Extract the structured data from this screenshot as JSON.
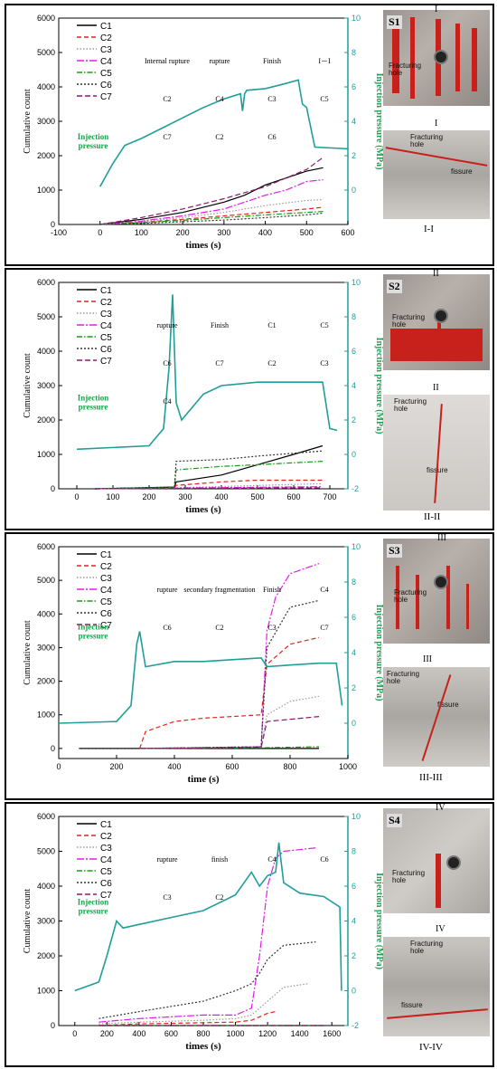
{
  "colors": {
    "C1": "#000000",
    "C2": "#e8221b",
    "C3": "#9a9a9a",
    "C4": "#e61ae6",
    "C5": "#12a012",
    "C6": "#333333",
    "C7": "#8b1a6b",
    "injection": "#1f9e9a",
    "injection_label": "#17a34a",
    "crack": "#c8201a"
  },
  "legend_labels": [
    "C1",
    "C2",
    "C3",
    "C4",
    "C5",
    "C6",
    "C7"
  ],
  "chart_data": [
    {
      "type": "line",
      "xlabel": "times (s)",
      "ylabel": "Cumulative count",
      "y2label": "Injection pressure (MPa)",
      "xlim": [
        -100,
        600
      ],
      "ylim": [
        0,
        6000
      ],
      "y2lim": [
        -2,
        10
      ],
      "xticks": [
        -100,
        0,
        100,
        200,
        300,
        400,
        500,
        600
      ],
      "yticks": [
        0,
        1000,
        2000,
        3000,
        4000,
        5000,
        6000
      ],
      "y2ticks": [
        0,
        2,
        4,
        6,
        8,
        10
      ],
      "series": [
        {
          "name": "C1",
          "x": [
            0,
            100,
            200,
            300,
            350,
            400,
            450,
            500,
            540
          ],
          "y": [
            0,
            150,
            350,
            650,
            850,
            1150,
            1350,
            1550,
            1650
          ]
        },
        {
          "name": "C2",
          "x": [
            0,
            100,
            200,
            300,
            400,
            500,
            540
          ],
          "y": [
            0,
            60,
            150,
            250,
            350,
            450,
            500
          ]
        },
        {
          "name": "C3",
          "x": [
            0,
            100,
            200,
            300,
            400,
            500,
            540
          ],
          "y": [
            0,
            80,
            200,
            350,
            550,
            700,
            720
          ]
        },
        {
          "name": "C4",
          "x": [
            0,
            100,
            200,
            300,
            350,
            400,
            450,
            500,
            540
          ],
          "y": [
            0,
            100,
            250,
            450,
            650,
            850,
            1000,
            1250,
            1300
          ]
        },
        {
          "name": "C5",
          "x": [
            0,
            100,
            200,
            300,
            400,
            500,
            540
          ],
          "y": [
            0,
            50,
            120,
            200,
            280,
            350,
            380
          ]
        },
        {
          "name": "C6",
          "x": [
            0,
            100,
            200,
            300,
            400,
            500,
            540
          ],
          "y": [
            0,
            30,
            80,
            130,
            200,
            280,
            330
          ]
        },
        {
          "name": "C7",
          "x": [
            0,
            100,
            200,
            300,
            400,
            500,
            540
          ],
          "y": [
            0,
            200,
            450,
            750,
            1100,
            1600,
            1950
          ]
        },
        {
          "name": "Injection pressure",
          "axis": "y2",
          "x": [
            0,
            30,
            60,
            100,
            150,
            200,
            250,
            300,
            340,
            345,
            350,
            355,
            400,
            450,
            480,
            490,
            500,
            520,
            600
          ],
          "y": [
            0.2,
            1.5,
            2.6,
            3.0,
            3.6,
            4.2,
            4.8,
            5.3,
            5.6,
            4.6,
            5.6,
            5.8,
            5.9,
            6.2,
            6.4,
            5.0,
            4.8,
            2.5,
            2.4
          ]
        }
      ],
      "annotations": [
        "Internal rupture",
        "rupture",
        "Finish",
        "I－I",
        "C2",
        "C4",
        "C3",
        "C5",
        "C7",
        "C2",
        "C6",
        "Injection pressure"
      ]
    },
    {
      "type": "line",
      "xlabel": "times (s)",
      "ylabel": "Cumulative count",
      "y2label": "Injection pressure (MPa)",
      "xlim": [
        -50,
        750
      ],
      "ylim": [
        0,
        6000
      ],
      "y2lim": [
        -2,
        10
      ],
      "xticks": [
        0,
        100,
        200,
        300,
        400,
        500,
        600,
        700
      ],
      "yticks": [
        0,
        1000,
        2000,
        3000,
        4000,
        5000,
        6000
      ],
      "y2ticks": [
        -2,
        0,
        2,
        4,
        6,
        8,
        10
      ],
      "series": [
        {
          "name": "C1",
          "x": [
            50,
            270,
            275,
            400,
            500,
            600,
            680
          ],
          "y": [
            0,
            50,
            200,
            400,
            700,
            1000,
            1250
          ]
        },
        {
          "name": "C2",
          "x": [
            50,
            270,
            275,
            400,
            500,
            680
          ],
          "y": [
            0,
            30,
            100,
            200,
            250,
            250
          ]
        },
        {
          "name": "C3",
          "x": [
            50,
            270,
            680
          ],
          "y": [
            0,
            30,
            150
          ]
        },
        {
          "name": "C4",
          "x": [
            50,
            270,
            680
          ],
          "y": [
            0,
            20,
            60
          ]
        },
        {
          "name": "C5",
          "x": [
            50,
            270,
            275,
            400,
            500,
            680
          ],
          "y": [
            0,
            40,
            550,
            650,
            700,
            800
          ]
        },
        {
          "name": "C6",
          "x": [
            50,
            270,
            275,
            400,
            500,
            680
          ],
          "y": [
            0,
            50,
            800,
            850,
            950,
            1100
          ]
        },
        {
          "name": "C7",
          "x": [
            50,
            270,
            680
          ],
          "y": [
            0,
            10,
            30
          ]
        },
        {
          "name": "Injection pressure",
          "axis": "y2",
          "x": [
            0,
            200,
            240,
            255,
            265,
            275,
            290,
            350,
            400,
            500,
            600,
            680,
            700,
            720
          ],
          "y": [
            0.3,
            0.5,
            1.5,
            5.0,
            9.3,
            3.0,
            2.0,
            3.5,
            4.0,
            4.2,
            4.2,
            4.2,
            1.5,
            1.4
          ]
        }
      ],
      "annotations": [
        "rupture",
        "Finish",
        "C1",
        "C5",
        "C6",
        "C7",
        "C2",
        "C3",
        "C4",
        "Injection pressure"
      ]
    },
    {
      "type": "line",
      "xlabel": "time (s)",
      "ylabel": "Cumulative count",
      "y2label": "Injection pressure (MPa)",
      "xlim": [
        0,
        1000
      ],
      "ylim": [
        -300,
        6000
      ],
      "y2lim": [
        -2,
        10
      ],
      "xticks": [
        0,
        200,
        400,
        600,
        800,
        1000
      ],
      "yticks": [
        0,
        1000,
        2000,
        3000,
        4000,
        5000,
        6000
      ],
      "y2ticks": [
        0,
        2,
        4,
        6,
        8,
        10
      ],
      "series": [
        {
          "name": "C1",
          "x": [
            70,
            280,
            500,
            700,
            720,
            900
          ],
          "y": [
            0,
            0,
            0,
            0,
            0,
            0
          ]
        },
        {
          "name": "C2",
          "x": [
            280,
            300,
            400,
            500,
            600,
            700,
            720,
            800,
            900
          ],
          "y": [
            0,
            500,
            800,
            900,
            950,
            1000,
            2500,
            3100,
            3300
          ]
        },
        {
          "name": "C3",
          "x": [
            280,
            700,
            720,
            800,
            900
          ],
          "y": [
            0,
            50,
            1000,
            1400,
            1550
          ]
        },
        {
          "name": "C4",
          "x": [
            280,
            700,
            720,
            750,
            800,
            900
          ],
          "y": [
            0,
            50,
            3500,
            4500,
            5200,
            5500
          ]
        },
        {
          "name": "C5",
          "x": [
            280,
            700,
            900
          ],
          "y": [
            0,
            20,
            50
          ]
        },
        {
          "name": "C6",
          "x": [
            70,
            280,
            700,
            720,
            800,
            900
          ],
          "y": [
            0,
            0,
            50,
            3000,
            4200,
            4400
          ]
        },
        {
          "name": "C7",
          "x": [
            280,
            700,
            720,
            900
          ],
          "y": [
            0,
            30,
            800,
            950
          ]
        },
        {
          "name": "Injection pressure",
          "axis": "y2",
          "x": [
            0,
            200,
            250,
            270,
            280,
            300,
            400,
            500,
            600,
            700,
            720,
            800,
            900,
            960,
            980
          ],
          "y": [
            0,
            0.1,
            1,
            4.5,
            5.2,
            3.2,
            3.5,
            3.5,
            3.6,
            3.7,
            3.2,
            3.3,
            3.4,
            3.4,
            1.0
          ]
        }
      ],
      "annotations": [
        "rupture",
        "secondary fragmentation",
        "Finish",
        "C4",
        "C6",
        "C2",
        "C3",
        "C7",
        "Injection pressure"
      ]
    },
    {
      "type": "line",
      "xlabel": "times (s)",
      "ylabel": "Cumulative count",
      "y2label": "Injection pressure (MPa)",
      "xlim": [
        -100,
        1700
      ],
      "ylim": [
        0,
        6000
      ],
      "y2lim": [
        -2,
        10
      ],
      "xticks": [
        0,
        200,
        400,
        600,
        800,
        1000,
        1200,
        1400,
        1600
      ],
      "yticks": [
        0,
        1000,
        2000,
        3000,
        4000,
        5000,
        6000
      ],
      "y2ticks": [
        -2,
        0,
        2,
        4,
        6,
        8,
        10
      ],
      "series": [
        {
          "name": "C1",
          "x": [
            150,
            1550
          ],
          "y": [
            0,
            0
          ]
        },
        {
          "name": "C2",
          "x": [
            150,
            400,
            800,
            1000,
            1100,
            1150,
            1200,
            1250
          ],
          "y": [
            0,
            50,
            80,
            100,
            150,
            250,
            350,
            400
          ]
        },
        {
          "name": "C3",
          "x": [
            150,
            400,
            800,
            1000,
            1100,
            1200,
            1300,
            1450
          ],
          "y": [
            50,
            100,
            150,
            200,
            300,
            700,
            1100,
            1200
          ]
        },
        {
          "name": "C4",
          "x": [
            150,
            400,
            800,
            1000,
            1100,
            1150,
            1200,
            1250,
            1300,
            1500
          ],
          "y": [
            100,
            200,
            300,
            300,
            500,
            2000,
            4000,
            4800,
            5000,
            5100
          ]
        },
        {
          "name": "C5",
          "x": [
            150,
            1550
          ],
          "y": [
            0,
            0
          ]
        },
        {
          "name": "C6",
          "x": [
            150,
            400,
            800,
            1000,
            1100,
            1150,
            1200,
            1300,
            1500
          ],
          "y": [
            200,
            400,
            700,
            1000,
            1200,
            1500,
            1900,
            2300,
            2400
          ]
        },
        {
          "name": "C7",
          "x": [
            150,
            1550
          ],
          "y": [
            0,
            0
          ]
        },
        {
          "name": "Injection pressure",
          "axis": "y2",
          "x": [
            0,
            150,
            200,
            260,
            300,
            400,
            600,
            800,
            1000,
            1100,
            1150,
            1200,
            1250,
            1270,
            1300,
            1400,
            1550,
            1650,
            1660
          ],
          "y": [
            0,
            0.5,
            2,
            4,
            3.6,
            3.8,
            4.2,
            4.6,
            5.5,
            6.8,
            6.0,
            6.6,
            6.8,
            8.5,
            6.2,
            5.6,
            5.4,
            4.8,
            0
          ]
        }
      ],
      "annotations": [
        "rupture",
        "finish",
        "C4",
        "C6",
        "C3",
        "C2",
        "Injection pressure"
      ]
    }
  ],
  "photos": [
    {
      "tag": "S1",
      "hole_label": "Fracturing hole",
      "section_top": "I",
      "section_bot": "I",
      "bottom_hole": "Fracturing hole",
      "fissure": "fissure",
      "section_name": "I-I"
    },
    {
      "tag": "S2",
      "hole_label": "Fracturing hole",
      "section_top": "II",
      "section_bot": "II",
      "bottom_hole": "Fracturing hole",
      "fissure": "fissure",
      "section_name": "II-II"
    },
    {
      "tag": "S3",
      "hole_label": "Fracturing hole",
      "section_top": "III",
      "section_bot": "III",
      "bottom_hole": "Fracturing hole",
      "fissure": "fissure",
      "section_name": "III-III"
    },
    {
      "tag": "S4",
      "hole_label": "Fracturing hole",
      "section_top": "IV",
      "section_bot": "IV",
      "bottom_hole": "Fracturing hole",
      "fissure": "fissure",
      "section_name": "IV-IV"
    }
  ]
}
